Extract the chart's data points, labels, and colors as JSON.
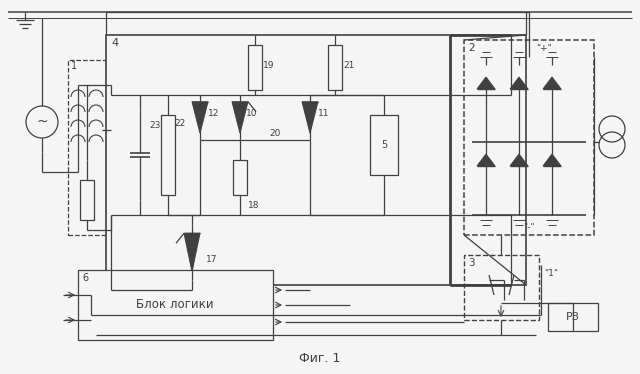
{
  "title": "Фиг. 1",
  "bg_color": "#f5f5f5",
  "line_color": "#404040",
  "fig_width": 6.4,
  "fig_height": 3.74
}
